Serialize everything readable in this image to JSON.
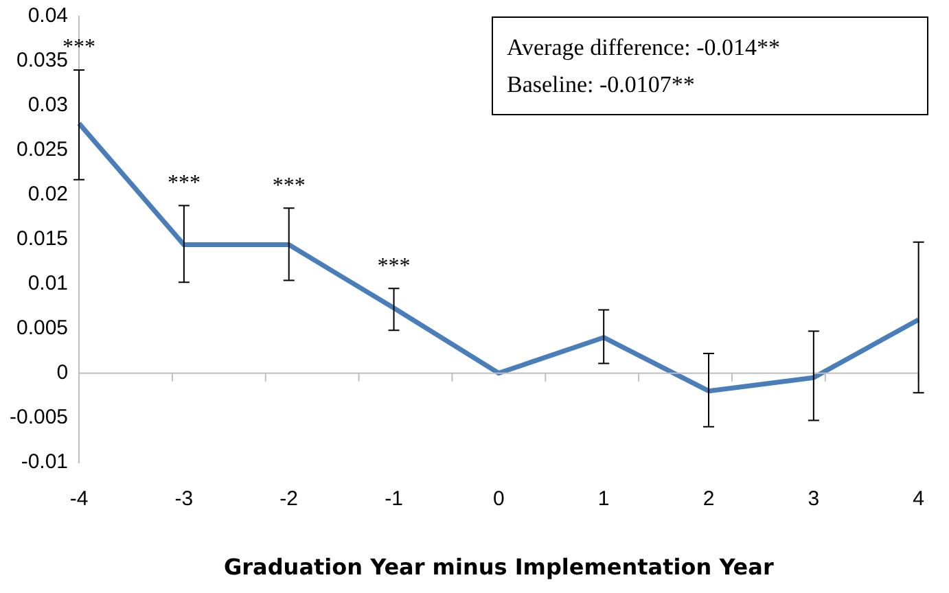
{
  "chart_data": {
    "type": "line",
    "xlabel": "Graduation Year minus Implementation Year",
    "categories": [
      "-4",
      "-3",
      "-2",
      "-1",
      "0",
      "1",
      "2",
      "3",
      "4"
    ],
    "series": [
      {
        "color": "#4a7ebb",
        "values": [
          0.028,
          0.0144,
          0.0144,
          0.0073,
          0,
          0.004,
          -0.002,
          -0.0005,
          0.006
        ],
        "value_labels": [
          "***",
          "***",
          "***",
          "***",
          null,
          null,
          null,
          null,
          null
        ],
        "errors": [
          [
            0.0217,
            0.034
          ],
          [
            0.0102,
            0.0188
          ],
          [
            0.0104,
            0.0185
          ],
          [
            0.0048,
            0.0095
          ],
          null,
          [
            0.0011,
            0.0071
          ],
          [
            -0.006,
            0.0022
          ],
          [
            -0.0053,
            0.0047
          ],
          [
            -0.0022,
            0.0147
          ]
        ]
      }
    ],
    "ylim": [
      -0.01,
      0.04
    ],
    "yticks": [
      -0.01,
      -0.005,
      0,
      0.005,
      0.01,
      0.015,
      0.02,
      0.025,
      0.03,
      0.035,
      0.04
    ],
    "grid": false,
    "legend": false,
    "marker": "none",
    "line_style": "solid",
    "ref_lines": [
      {
        "axis": "y",
        "value": 0,
        "color": "#bfbfbf"
      }
    ],
    "annotations": [
      "Average difference:  -0.014**",
      "Baseline:  -0.0107**"
    ]
  }
}
